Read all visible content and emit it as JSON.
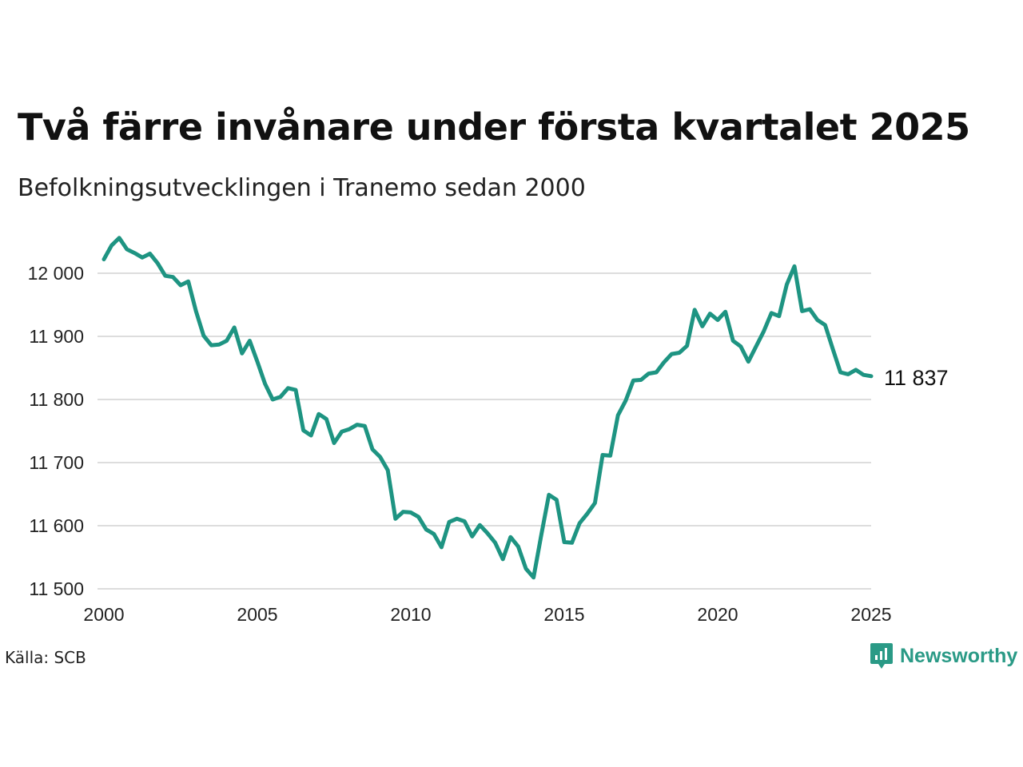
{
  "title": "Två färre invånare under första kvartalet 2025",
  "subtitle": "Befolkningsutvecklingen i Tranemo sedan 2000",
  "source": "Källa: SCB",
  "brand": {
    "name": "Newsworthy",
    "icon": "newsworthy-logo-icon",
    "color": "#2a9a86"
  },
  "end_label": "11 837",
  "colors": {
    "line": "#1e9482",
    "grid": "#dddddd"
  },
  "chart_data": {
    "type": "line",
    "title": "Två färre invånare under första kvartalet 2025",
    "subtitle": "Befolkningsutvecklingen i Tranemo sedan 2000",
    "xlabel": "",
    "ylabel": "",
    "xlim": [
      2000,
      2025
    ],
    "ylim": [
      11500,
      12060
    ],
    "x_ticks": [
      2000,
      2005,
      2010,
      2015,
      2020,
      2025
    ],
    "x_tick_labels": [
      "2000",
      "2005",
      "2010",
      "2015",
      "2020",
      "2025"
    ],
    "y_ticks": [
      11500,
      11600,
      11700,
      11800,
      11900,
      12000
    ],
    "y_tick_labels": [
      "11 500",
      "11 600",
      "11 700",
      "11 800",
      "11 900",
      "12 000"
    ],
    "grid": "horizontal",
    "legend": "none",
    "series": [
      {
        "x": [
          2000.0,
          2000.25,
          2000.5,
          2000.75,
          2001.0,
          2001.25,
          2001.5,
          2001.75,
          2002.0,
          2002.25,
          2002.5,
          2002.75,
          2003.0,
          2003.25,
          2003.5,
          2003.75,
          2004.0,
          2004.25,
          2004.5,
          2004.75,
          2005.0,
          2005.25,
          2005.5,
          2005.75,
          2006.0,
          2006.25,
          2006.5,
          2006.75,
          2007.0,
          2007.25,
          2007.5,
          2007.75,
          2008.0,
          2008.25,
          2008.5,
          2008.75,
          2009.0,
          2009.25,
          2009.5,
          2009.75,
          2010.0,
          2010.25,
          2010.5,
          2010.75,
          2011.0,
          2011.25,
          2011.5,
          2011.75,
          2012.0,
          2012.25,
          2012.5,
          2012.75,
          2013.0,
          2013.25,
          2013.5,
          2013.75,
          2014.0,
          2014.25,
          2014.5,
          2014.75,
          2015.0,
          2015.25,
          2015.5,
          2015.75,
          2016.0,
          2016.25,
          2016.5,
          2016.75,
          2017.0,
          2017.25,
          2017.5,
          2017.75,
          2018.0,
          2018.25,
          2018.5,
          2018.75,
          2019.0,
          2019.25,
          2019.5,
          2019.75,
          2020.0,
          2020.25,
          2020.5,
          2020.75,
          2021.0,
          2021.25,
          2021.5,
          2021.75,
          2022.0,
          2022.25,
          2022.5,
          2022.75,
          2023.0,
          2023.25,
          2023.5,
          2023.75,
          2024.0,
          2024.25,
          2024.5,
          2024.75,
          2025.0
        ],
        "y": [
          12022,
          12044,
          12056,
          12038,
          12032,
          12025,
          12031,
          12016,
          11996,
          11994,
          11981,
          11987,
          11940,
          11901,
          11886,
          11887,
          11893,
          11914,
          11873,
          11893,
          11860,
          11825,
          11800,
          11804,
          11818,
          11815,
          11751,
          11743,
          11777,
          11769,
          11731,
          11749,
          11753,
          11760,
          11758,
          11721,
          11709,
          11688,
          11611,
          11622,
          11621,
          11614,
          11594,
          11587,
          11566,
          11606,
          11611,
          11607,
          11583,
          11601,
          11588,
          11573,
          11547,
          11582,
          11567,
          11532,
          11518,
          11585,
          11649,
          11641,
          11574,
          11573,
          11604,
          11619,
          11636,
          11712,
          11711,
          11775,
          11798,
          11830,
          11831,
          11841,
          11843,
          11859,
          11872,
          11874,
          11885,
          11942,
          11916,
          11936,
          11926,
          11939,
          11893,
          11884,
          11860,
          11884,
          11908,
          11937,
          11932,
          11982,
          12011,
          11940,
          11943,
          11926,
          11918,
          11880,
          11843,
          11840,
          11847,
          11839,
          11837
        ]
      }
    ]
  }
}
